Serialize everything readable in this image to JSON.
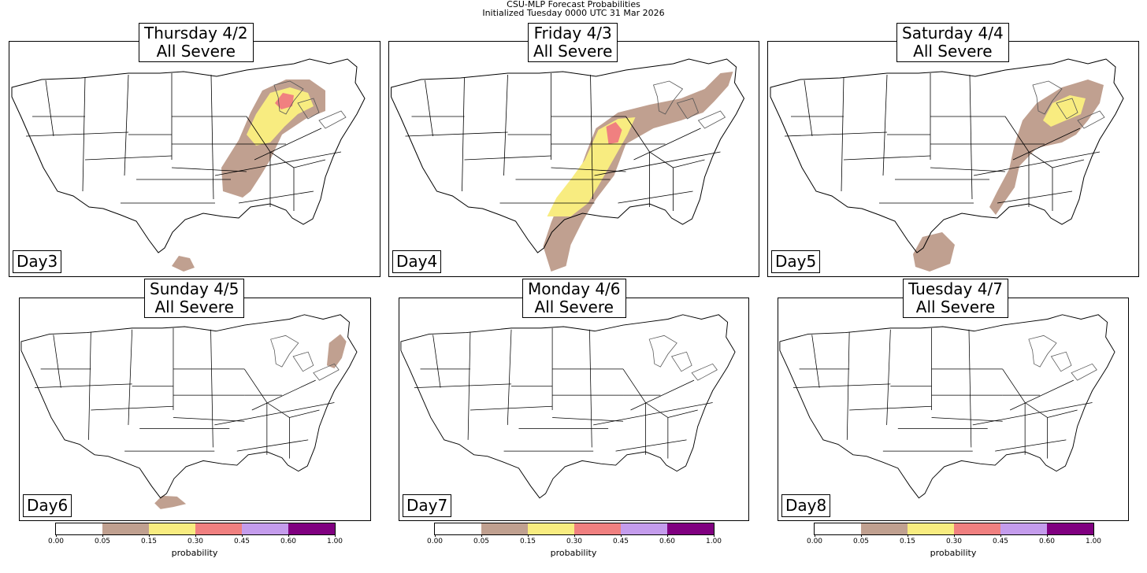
{
  "header": {
    "line1": "CSU-MLP Forecast Probabilities",
    "line2": "Initialized Tuesday 0000 UTC 31 Mar 2026"
  },
  "panels": [
    {
      "day_label": "Day3",
      "title1": "Thursday 4/2",
      "title2": "All Severe"
    },
    {
      "day_label": "Day4",
      "title1": "Friday 4/3",
      "title2": "All Severe"
    },
    {
      "day_label": "Day5",
      "title1": "Saturday 4/4",
      "title2": "All Severe"
    },
    {
      "day_label": "Day6",
      "title1": "Sunday 4/5",
      "title2": "All Severe"
    },
    {
      "day_label": "Day7",
      "title1": "Monday 4/6",
      "title2": "All Severe"
    },
    {
      "day_label": "Day8",
      "title1": "Tuesday 4/7",
      "title2": "All Severe"
    }
  ],
  "colorbar": {
    "label": "probability",
    "ticks": [
      "0.00",
      "0.05",
      "0.15",
      "0.30",
      "0.45",
      "0.60",
      "1.00"
    ],
    "colors": [
      "#ffffff",
      "#c0a090",
      "#f8ec80",
      "#f08080",
      "#c49cec",
      "#800080"
    ]
  }
}
